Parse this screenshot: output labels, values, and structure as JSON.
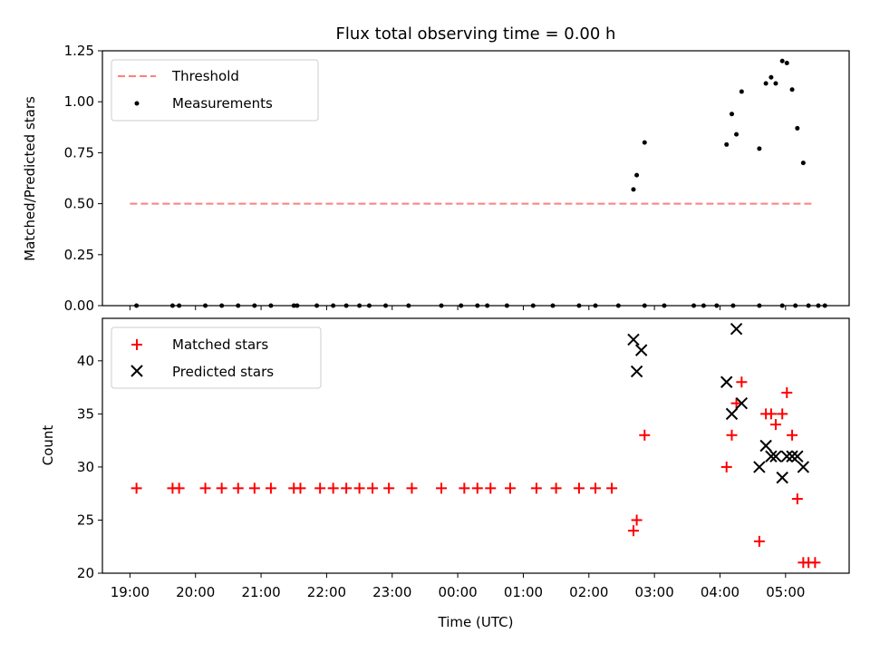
{
  "chart_data": [
    {
      "type": "scatter",
      "title": "Flux total observing time = 0.00 h",
      "ylabel": "Matched/Predicted stars",
      "xlabel": "",
      "x_unit": "hours since 19:00 UTC",
      "xlim": [
        -0.42,
        10.97
      ],
      "ylim": [
        0.0,
        1.25
      ],
      "yticks": [
        0.0,
        0.25,
        0.5,
        0.75,
        1.0,
        1.25
      ],
      "ytick_labels": [
        "0.00",
        "0.25",
        "0.50",
        "0.75",
        "1.00",
        "1.25"
      ],
      "legend": {
        "position": "top-left",
        "entries": [
          {
            "label": "Threshold",
            "kind": "dashed-line",
            "color": "#ff7f7f"
          },
          {
            "label": "Measurements",
            "kind": "dot",
            "color": "#000000"
          }
        ]
      },
      "series": [
        {
          "name": "Threshold",
          "kind": "line",
          "color": "#ff7f7f",
          "x": [
            0.0,
            10.45
          ],
          "y": [
            0.5,
            0.5
          ]
        },
        {
          "name": "Measurements",
          "kind": "dot",
          "color": "#000000",
          "x": [
            0.1,
            0.65,
            0.75,
            1.15,
            1.4,
            1.65,
            1.9,
            2.15,
            2.5,
            2.55,
            2.85,
            3.1,
            3.3,
            3.5,
            3.65,
            3.9,
            4.25,
            4.75,
            5.05,
            5.3,
            5.45,
            5.75,
            6.15,
            6.45,
            6.85,
            7.1,
            7.45,
            7.85,
            8.15,
            8.6,
            8.75,
            8.95,
            9.2,
            9.6,
            9.95,
            10.15,
            10.35,
            10.5,
            10.6
          ],
          "y": [
            0,
            0,
            0,
            0,
            0,
            0,
            0,
            0,
            0,
            0,
            0,
            0,
            0,
            0,
            0,
            0,
            0,
            0,
            0,
            0,
            0,
            0,
            0,
            0,
            0,
            0,
            0,
            0,
            0,
            0,
            0,
            0,
            0,
            0,
            0,
            0,
            0,
            0,
            0
          ]
        },
        {
          "name": "Measurements-high",
          "kind": "dot",
          "color": "#000000",
          "x": [
            7.68,
            7.73,
            7.85,
            9.1,
            9.18,
            9.25,
            9.33,
            9.6,
            9.7,
            9.78,
            9.85,
            9.95,
            10.02,
            10.1,
            10.18,
            10.27
          ],
          "y": [
            0.57,
            0.64,
            0.8,
            0.79,
            0.94,
            0.84,
            1.05,
            0.77,
            1.09,
            1.12,
            1.09,
            1.2,
            1.19,
            1.06,
            0.87,
            0.7
          ]
        }
      ]
    },
    {
      "type": "scatter",
      "title": "",
      "ylabel": "Count",
      "xlabel": "Time (UTC)",
      "x_unit": "hours since 19:00 UTC",
      "xlim": [
        -0.42,
        10.97
      ],
      "ylim": [
        20,
        44
      ],
      "yticks": [
        20,
        25,
        30,
        35,
        40
      ],
      "xticks": [
        0,
        1,
        2,
        3,
        4,
        5,
        6,
        7,
        8,
        9,
        10
      ],
      "xtick_labels": [
        "19:00",
        "20:00",
        "21:00",
        "22:00",
        "23:00",
        "00:00",
        "01:00",
        "02:00",
        "03:00",
        "04:00",
        "05:00"
      ],
      "legend": {
        "position": "top-left",
        "entries": [
          {
            "label": "Matched stars",
            "kind": "plus",
            "color": "#ff0000"
          },
          {
            "label": "Predicted stars",
            "kind": "x",
            "color": "#000000"
          }
        ]
      },
      "series": [
        {
          "name": "Matched stars",
          "kind": "plus",
          "color": "#ff0000",
          "x": [
            0.1,
            0.65,
            0.75,
            1.15,
            1.4,
            1.65,
            1.9,
            2.15,
            2.5,
            2.6,
            2.9,
            3.1,
            3.3,
            3.5,
            3.7,
            3.95,
            4.3,
            4.75,
            5.1,
            5.3,
            5.5,
            5.8,
            6.2,
            6.5,
            6.85,
            7.1,
            7.35,
            7.68,
            7.73,
            7.85,
            9.1,
            9.18,
            9.25,
            9.33,
            9.6,
            9.7,
            9.78,
            9.85,
            9.95,
            10.02,
            10.1,
            10.18,
            10.27,
            10.35,
            10.45
          ],
          "y": [
            28,
            28,
            28,
            28,
            28,
            28,
            28,
            28,
            28,
            28,
            28,
            28,
            28,
            28,
            28,
            28,
            28,
            28,
            28,
            28,
            28,
            28,
            28,
            28,
            28,
            28,
            28,
            24,
            25,
            33,
            30,
            33,
            36,
            38,
            23,
            35,
            35,
            34,
            35,
            37,
            33,
            27,
            21,
            21,
            21
          ]
        },
        {
          "name": "Predicted stars",
          "kind": "x",
          "color": "#000000",
          "x": [
            7.68,
            7.73,
            7.8,
            9.1,
            9.18,
            9.25,
            9.33,
            9.6,
            9.7,
            9.78,
            9.85,
            9.95,
            10.02,
            10.1,
            10.18,
            10.27
          ],
          "y": [
            42,
            39,
            41,
            38,
            35,
            43,
            36,
            30,
            32,
            31,
            31,
            29,
            31,
            31,
            31,
            30
          ]
        }
      ]
    }
  ]
}
